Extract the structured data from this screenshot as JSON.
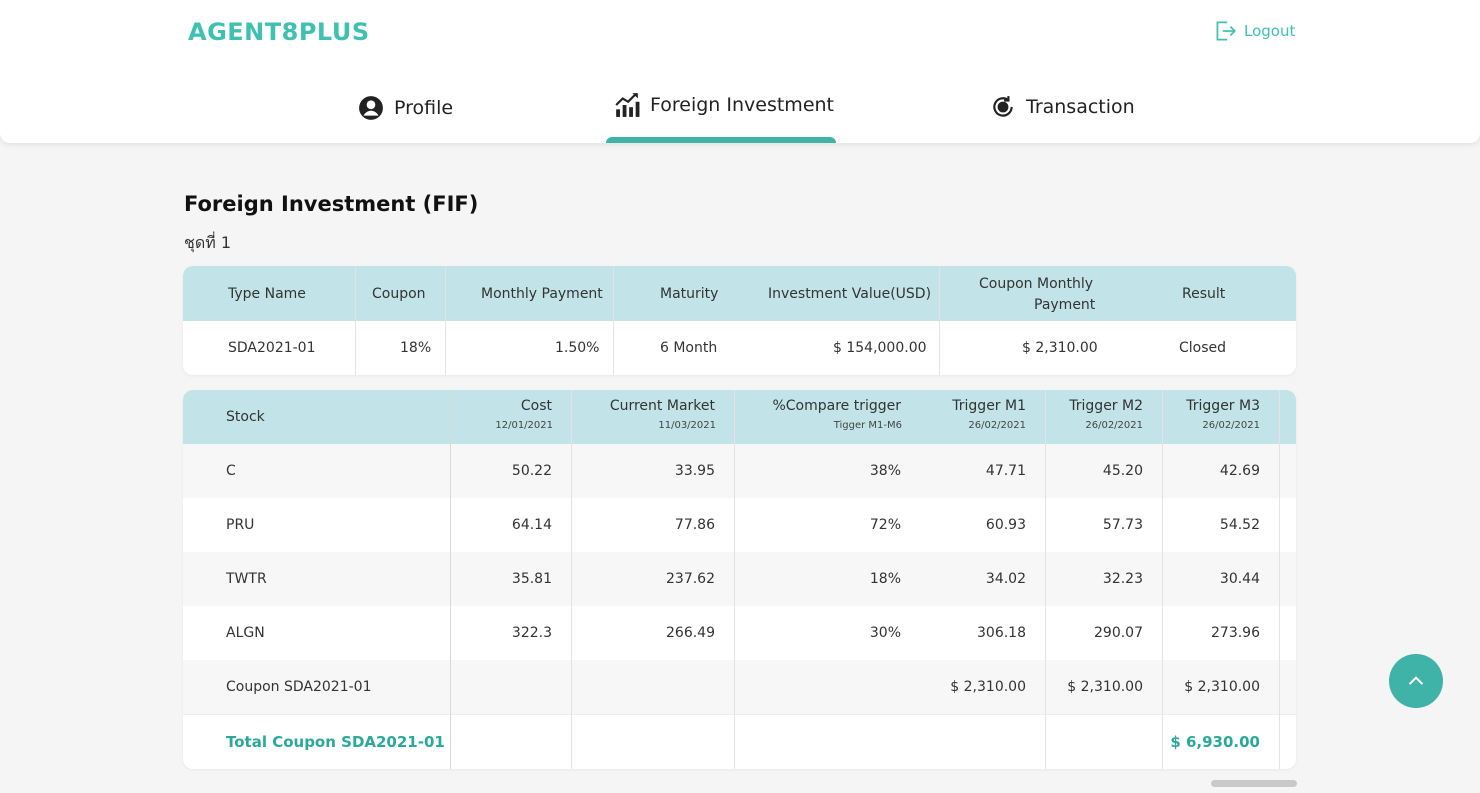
{
  "header": {
    "logo": "AGENT8PLUS",
    "logout_label": "Logout",
    "accent_color": "#3fc1b2"
  },
  "tabs": [
    {
      "label": "Profile",
      "icon": "user-circle-icon"
    },
    {
      "label": "Foreign Investment",
      "icon": "chart-growth-icon",
      "active": true
    },
    {
      "label": "Transaction",
      "icon": "money-exchange-icon"
    }
  ],
  "page": {
    "title": "Foreign Investment (FIF)",
    "set_label": "ชุดที่ 1"
  },
  "summary": {
    "headers": [
      "Type Name",
      "Coupon",
      "Monthly Payment",
      "Maturity",
      "Investment Value(USD)",
      "Coupon Monthly Payment",
      "Result"
    ],
    "header_coupon_monthly_1": "Coupon Monthly",
    "header_coupon_monthly_2": "Payment",
    "row": [
      "SDA2021-01",
      "18%",
      "1.50%",
      "6 Month",
      "$ 154,000.00",
      "$ 2,310.00",
      "Closed"
    ]
  },
  "detail": {
    "headers": [
      {
        "title": "Stock",
        "sub": ""
      },
      {
        "title": "Cost",
        "sub": "12/01/2021"
      },
      {
        "title": "Current Market",
        "sub": "11/03/2021"
      },
      {
        "title": "%Compare trigger",
        "sub": "Tigger M1-M6"
      },
      {
        "title": "Trigger M1",
        "sub": "26/02/2021"
      },
      {
        "title": "Trigger M2",
        "sub": "26/02/2021"
      },
      {
        "title": "Trigger M3",
        "sub": "26/02/2021"
      }
    ],
    "rows": [
      [
        "C",
        "50.22",
        "33.95",
        "38%",
        "47.71",
        "45.20",
        "42.69"
      ],
      [
        "PRU",
        "64.14",
        "77.86",
        "72%",
        "60.93",
        "57.73",
        "54.52"
      ],
      [
        "TWTR",
        "35.81",
        "237.62",
        "18%",
        "34.02",
        "32.23",
        "30.44"
      ],
      [
        "ALGN",
        "322.3",
        "266.49",
        "30%",
        "306.18",
        "290.07",
        "273.96"
      ],
      [
        "Coupon SDA2021-01",
        "",
        "",
        "",
        "$ 2,310.00",
        "$ 2,310.00",
        "$ 2,310.00"
      ]
    ],
    "total_label": "Total Coupon SDA2021-01",
    "total_value": "$ 6,930.00"
  }
}
